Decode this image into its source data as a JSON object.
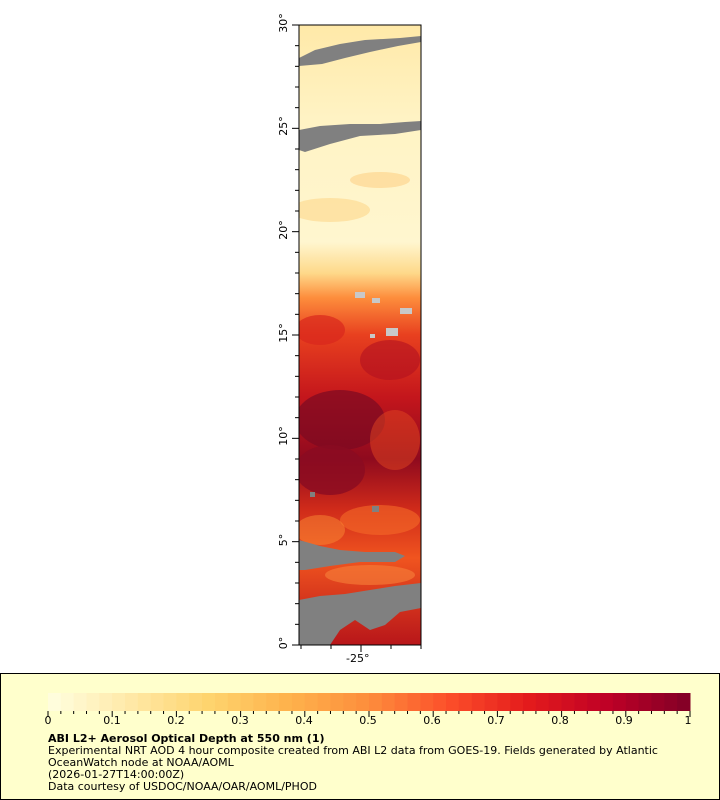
{
  "map": {
    "lat_ticks": [
      "0°",
      "5°",
      "10°",
      "15°",
      "20°",
      "25°",
      "30°"
    ],
    "lon_ticks": [
      "-25°"
    ],
    "lat_range": [
      0,
      30
    ],
    "colors": {
      "no_data": "#808080",
      "land_mask": "#c8c8c8"
    }
  },
  "colorbar": {
    "range": [
      0,
      1
    ],
    "tick_labels": [
      "0",
      "0.1",
      "0.2",
      "0.3",
      "0.4",
      "0.5",
      "0.6",
      "0.7",
      "0.8",
      "0.9",
      "1"
    ],
    "colors": [
      "#ffffe0",
      "#ffe9a8",
      "#fed46e",
      "#feb24c",
      "#fd8d3c",
      "#fc4e2a",
      "#e31a1c",
      "#bd0026",
      "#800026"
    ]
  },
  "legend": {
    "title": "ABI L2+ Aerosol Optical Depth at 550 nm (1)",
    "line1": "Experimental NRT AOD 4 hour composite created from ABI L2 data from GOES-19. Fields generated by Atlantic",
    "line2": "OceanWatch node at NOAA/AOML",
    "line3": "(2026-01-27T14:00:00Z)",
    "line4": "Data courtesy of USDOC/NOAA/OAR/AOML/PHOD"
  }
}
